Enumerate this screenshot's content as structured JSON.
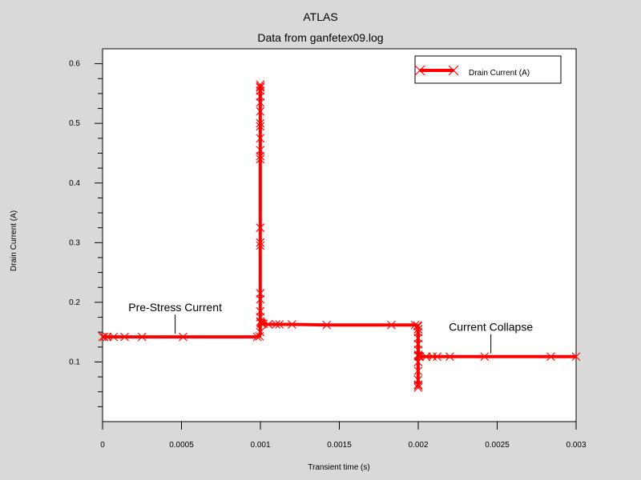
{
  "chart_data": {
    "type": "line",
    "title": "ATLAS",
    "subtitle": "Data from ganfetex09.log",
    "xlabel": "Transient time (s)",
    "ylabel": "Drain Current (A)",
    "xlim": [
      0,
      0.003
    ],
    "ylim": [
      0,
      0.625
    ],
    "x_ticks": [
      "0",
      "0.0005",
      "0.001",
      "0.0015",
      "0.002",
      "0.0025",
      "0.003"
    ],
    "x_tick_values": [
      0,
      0.0005,
      0.001,
      0.0015,
      0.002,
      0.0025,
      0.003
    ],
    "y_ticks": [
      "0.1",
      "0.2",
      "0.3",
      "0.4",
      "0.5",
      "0.6"
    ],
    "y_tick_values": [
      0.1,
      0.2,
      0.3,
      0.4,
      0.5,
      0.6
    ],
    "grid": false,
    "legend_position": "top-right",
    "series": [
      {
        "name": "Drain Current (A)",
        "color": "#ff0000",
        "marker": "x",
        "x": [
          0,
          1e-05,
          3e-05,
          7e-05,
          0.00014,
          0.00025,
          0.00051,
          0.00098,
          0.000995,
          0.000999,
          0.0009995,
          0.000999,
          0.000999,
          0.000999,
          0.000999,
          0.000999,
          0.000999,
          0.000999,
          0.000999,
          0.000999,
          0.000999,
          0.000999,
          0.000999,
          0.000999,
          0.000999,
          0.000999,
          0.000999,
          0.000999,
          0.000999,
          0.000999,
          0.001,
          0.001002,
          0.001005,
          0.00101,
          0.00102,
          0.00105,
          0.0011,
          0.00112,
          0.0012,
          0.00142,
          0.00183,
          0.00198,
          0.001995,
          0.001999,
          0.0019995,
          0.001999,
          0.001999,
          0.001999,
          0.001999,
          0.001999,
          0.001999,
          0.001999,
          0.001999,
          0.001999,
          0.001999,
          0.001999,
          0.001999,
          0.002,
          0.002002,
          0.002005,
          0.00201,
          0.00205,
          0.00209,
          0.00212,
          0.0022,
          0.00242,
          0.00284,
          0.003
        ],
        "y": [
          0.142,
          0.142,
          0.142,
          0.142,
          0.142,
          0.142,
          0.142,
          0.142,
          0.143,
          0.15,
          0.56,
          0.565,
          0.562,
          0.555,
          0.545,
          0.535,
          0.52,
          0.5,
          0.495,
          0.475,
          0.455,
          0.445,
          0.44,
          0.325,
          0.3,
          0.295,
          0.215,
          0.205,
          0.185,
          0.175,
          0.168,
          0.166,
          0.165,
          0.164,
          0.164,
          0.163,
          0.163,
          0.163,
          0.163,
          0.162,
          0.162,
          0.162,
          0.161,
          0.155,
          0.06,
          0.057,
          0.062,
          0.07,
          0.085,
          0.1,
          0.11,
          0.12,
          0.13,
          0.14,
          0.15,
          0.155,
          0.16,
          0.112,
          0.11,
          0.109,
          0.109,
          0.109,
          0.109,
          0.109,
          0.109,
          0.109,
          0.109,
          0.109
        ]
      }
    ],
    "annotations": [
      {
        "text": "Pre-Stress Current",
        "x": 0.00046,
        "y": 0.142
      },
      {
        "text": "Current Collapse",
        "x": 0.00246,
        "y": 0.109
      }
    ]
  }
}
